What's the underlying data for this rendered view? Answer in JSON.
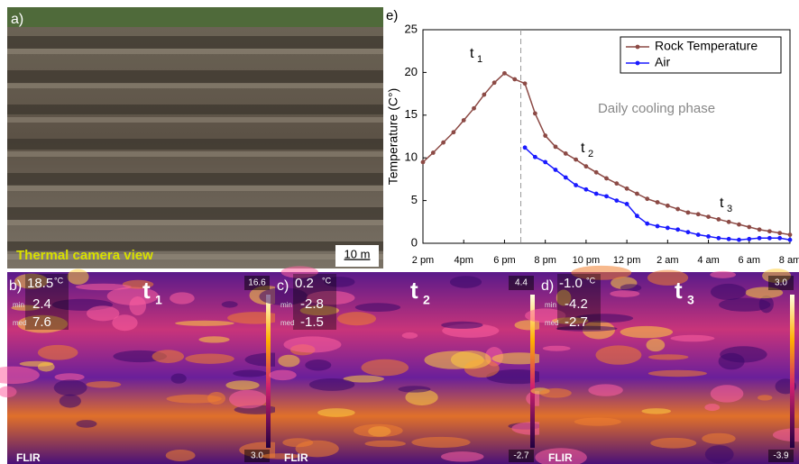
{
  "chart_data": {
    "type": "line",
    "panel_label": "e)",
    "y_label": "Temperature (C°)",
    "x": [
      14,
      14.5,
      15,
      15.5,
      16,
      16.5,
      17,
      17.5,
      18,
      18.5,
      19,
      19.5,
      20,
      20.5,
      21,
      21.5,
      22,
      22.5,
      23,
      23.5,
      24,
      24.5,
      25,
      25.5,
      26,
      26.5,
      27,
      27.5,
      28,
      28.5,
      29,
      29.5,
      30,
      30.5,
      31,
      31.5,
      32
    ],
    "series": [
      {
        "name": "Rock Temperature",
        "color": "#8c4a45",
        "values": [
          9.5,
          10.6,
          11.8,
          13.0,
          14.4,
          15.8,
          17.4,
          18.8,
          19.9,
          19.2,
          18.7,
          15.2,
          12.6,
          11.3,
          10.5,
          9.8,
          9.0,
          8.3,
          7.6,
          7.0,
          6.4,
          5.8,
          5.2,
          4.8,
          4.4,
          4.0,
          3.6,
          3.4,
          3.1,
          2.8,
          2.5,
          2.2,
          1.9,
          1.6,
          1.4,
          1.2,
          1.0
        ]
      },
      {
        "name": "Air",
        "color": "#1a1aff",
        "values": [
          null,
          null,
          null,
          null,
          null,
          null,
          null,
          null,
          null,
          null,
          11.2,
          10.1,
          9.5,
          8.6,
          7.7,
          6.8,
          6.3,
          5.8,
          5.5,
          5.0,
          4.6,
          3.2,
          2.3,
          2.0,
          1.8,
          1.6,
          1.3,
          1.0,
          0.8,
          0.6,
          0.5,
          0.4,
          0.5,
          0.6,
          0.6,
          0.6,
          0.4
        ]
      }
    ],
    "xlim": [
      14,
      32
    ],
    "xticks": [
      {
        "value": 14,
        "label": "2 pm"
      },
      {
        "value": 16,
        "label": "4pm"
      },
      {
        "value": 18,
        "label": "6 pm"
      },
      {
        "value": 20,
        "label": "8 pm"
      },
      {
        "value": 22,
        "label": "10 pm"
      },
      {
        "value": 24,
        "label": "12 pm"
      },
      {
        "value": 26,
        "label": "2 am"
      },
      {
        "value": 28,
        "label": "4 am"
      },
      {
        "value": 30,
        "label": "6 am"
      },
      {
        "value": 32,
        "label": "8 am"
      }
    ],
    "ylim": [
      0,
      25
    ],
    "yticks": [
      0,
      5,
      10,
      15,
      20,
      25
    ],
    "vline": 18.8,
    "legend": "top-right",
    "annotations": [
      {
        "text": "t",
        "sub": "1"
      },
      {
        "text": "t",
        "sub": "2"
      },
      {
        "text": "t",
        "sub": "3"
      },
      {
        "text": "Daily cooling phase"
      }
    ]
  },
  "photo": {
    "label": "a)",
    "caption": "Thermal camera view",
    "scale": "10 m"
  },
  "thermal_panels": [
    {
      "label": "b)",
      "max": "18.5",
      "unit": "°C",
      "min_label": "min",
      "min": "2.4",
      "med_label": "med",
      "med": "7.6",
      "t": "t",
      "t_sub": "1",
      "scale_max": "16.6",
      "scale_min": "3.0",
      "logo": "FLIR"
    },
    {
      "label": "c)",
      "max": "0.2",
      "unit": "°C",
      "min_label": "min",
      "min": "-2.8",
      "med_label": "med",
      "med": "-1.5",
      "t": "t",
      "t_sub": "2",
      "scale_max": "4.4",
      "scale_min": "-2.7",
      "logo": "FLIR"
    },
    {
      "label": "d)",
      "max": "-1.0",
      "unit": "°C",
      "min_label": "min",
      "min": "-4.2",
      "med_label": "med",
      "med": "-2.7",
      "t": "t",
      "t_sub": "3",
      "scale_max": "3.0",
      "scale_min": "-3.9",
      "logo": "FLIR"
    }
  ]
}
